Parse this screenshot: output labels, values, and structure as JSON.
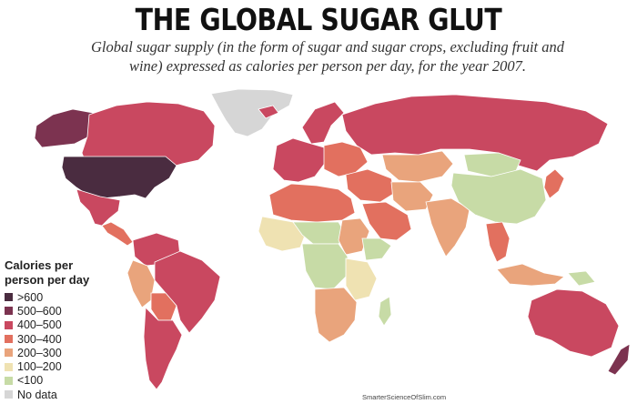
{
  "title": "THE GLOBAL SUGAR GLUT",
  "subtitle": "Global sugar supply (in the form of sugar and sugar crops, excluding fruit and wine) expressed as calories per person per day, for the year 2007.",
  "legend": {
    "title": "Calories per person per day",
    "items": [
      {
        "label": ">600",
        "color": "#4a2c40"
      },
      {
        "label": "500–600",
        "color": "#7c3350"
      },
      {
        "label": "400–500",
        "color": "#c94860"
      },
      {
        "label": "300–400",
        "color": "#e2705f"
      },
      {
        "label": "200–300",
        "color": "#e9a47c"
      },
      {
        "label": "100–200",
        "color": "#efe2b2"
      },
      {
        "label": "<100",
        "color": "#c7dba6"
      },
      {
        "label": "No data",
        "color": "#d6d6d6"
      }
    ]
  },
  "regions": [
    {
      "name": "Greenland",
      "class": "No data"
    },
    {
      "name": "Alaska",
      "class": "500–600"
    },
    {
      "name": "Canada",
      "class": "400–500"
    },
    {
      "name": "United States",
      "class": ">600"
    },
    {
      "name": "Mexico",
      "class": "400–500"
    },
    {
      "name": "Central America",
      "class": "300–400"
    },
    {
      "name": "Colombia and Venezuela",
      "class": "400–500"
    },
    {
      "name": "Brazil",
      "class": "400–500"
    },
    {
      "name": "Peru",
      "class": "200–300"
    },
    {
      "name": "Bolivia",
      "class": "300–400"
    },
    {
      "name": "Chile and Argentina",
      "class": "400–500"
    },
    {
      "name": "Iceland",
      "class": "400–500"
    },
    {
      "name": "Scandinavia",
      "class": "400–500"
    },
    {
      "name": "Western Europe",
      "class": "400–500"
    },
    {
      "name": "Eastern Europe",
      "class": "300–400"
    },
    {
      "name": "Russia",
      "class": "400–500"
    },
    {
      "name": "Kazakhstan",
      "class": "200–300"
    },
    {
      "name": "Middle East",
      "class": "300–400"
    },
    {
      "name": "Arabian Peninsula",
      "class": "300–400"
    },
    {
      "name": "North Africa",
      "class": "300–400"
    },
    {
      "name": "West Africa",
      "class": "100–200"
    },
    {
      "name": "Sahel",
      "class": "<100"
    },
    {
      "name": "Sudan",
      "class": "200–300"
    },
    {
      "name": "Ethiopia",
      "class": "<100"
    },
    {
      "name": "Central Africa",
      "class": "<100"
    },
    {
      "name": "East Africa",
      "class": "100–200"
    },
    {
      "name": "Southern Africa",
      "class": "200–300"
    },
    {
      "name": "Madagascar",
      "class": "<100"
    },
    {
      "name": "Iran and Afghanistan",
      "class": "200–300"
    },
    {
      "name": "India",
      "class": "200–300"
    },
    {
      "name": "Mongolia",
      "class": "<100"
    },
    {
      "name": "China",
      "class": "<100"
    },
    {
      "name": "Korea and Japan",
      "class": "300–400"
    },
    {
      "name": "Southeast Asia",
      "class": "300–400"
    },
    {
      "name": "Indonesia",
      "class": "200–300"
    },
    {
      "name": "Papua New Guinea",
      "class": "<100"
    },
    {
      "name": "Australia",
      "class": "400–500"
    },
    {
      "name": "New Zealand",
      "class": "500–600"
    }
  ],
  "credit": "SmarterScienceOfSlim.com"
}
